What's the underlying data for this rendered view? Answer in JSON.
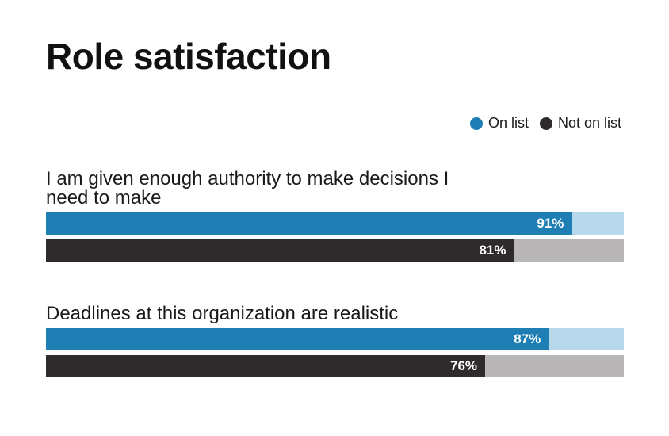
{
  "chart_data": {
    "type": "bar",
    "orientation": "horizontal",
    "title": "Role satisfaction",
    "categories": [
      "I am given enough authority to make decisions I need to make",
      "Deadlines at this organization are realistic"
    ],
    "series": [
      {
        "name": "On list",
        "values": [
          91,
          87
        ],
        "labels": [
          "91%",
          "87%"
        ],
        "color": "#1f7fb5",
        "track_color": "#b8d9ec"
      },
      {
        "name": "Not on list",
        "values": [
          81,
          76
        ],
        "labels": [
          "81%",
          "76%"
        ],
        "color": "#2f2a2b",
        "track_color": "#b8b6b6"
      }
    ],
    "xlim": [
      0,
      100
    ],
    "grid": false,
    "legend": "top-right"
  }
}
